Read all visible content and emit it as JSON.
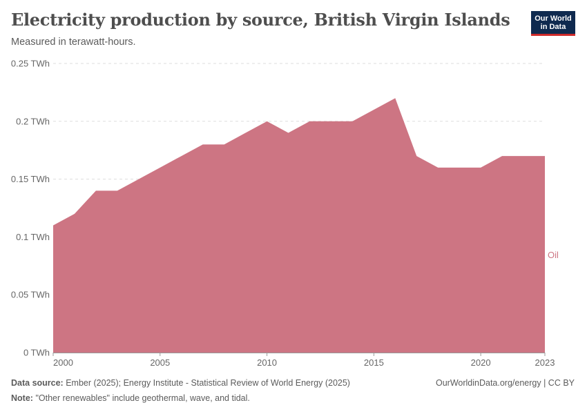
{
  "header": {
    "title": "Electricity production by source, British Virgin Islands",
    "subtitle": "Measured in terawatt-hours.",
    "logo_line1": "Our World",
    "logo_line2": "in Data"
  },
  "footer": {
    "source_label": "Data source:",
    "source_text": "Ember (2025); Energy Institute - Statistical Review of World Energy (2025)",
    "url_text": "OurWorldinData.org/energy | CC BY",
    "note_label": "Note:",
    "note_text": "\"Other renewables\" include geothermal, wave, and tidal."
  },
  "colors": {
    "oil": "#cd7583",
    "grid": "#dddddd",
    "axis": "#666666"
  },
  "chart_data": {
    "type": "area",
    "title": "Electricity production by source, British Virgin Islands",
    "ylabel": "TWh",
    "x": [
      2000,
      2001,
      2002,
      2003,
      2004,
      2005,
      2006,
      2007,
      2008,
      2009,
      2010,
      2011,
      2012,
      2013,
      2014,
      2015,
      2016,
      2017,
      2018,
      2019,
      2020,
      2021,
      2022,
      2023
    ],
    "series": [
      {
        "name": "Oil",
        "values": [
          0.11,
          0.12,
          0.14,
          0.14,
          0.15,
          0.16,
          0.17,
          0.18,
          0.18,
          0.19,
          0.2,
          0.19,
          0.2,
          0.2,
          0.2,
          0.21,
          0.22,
          0.17,
          0.16,
          0.16,
          0.16,
          0.17,
          0.17,
          0.17
        ]
      }
    ],
    "xlim": [
      2000,
      2023
    ],
    "ylim": [
      0,
      0.25
    ],
    "x_ticks": [
      "2000",
      "2005",
      "2010",
      "2015",
      "2020",
      "2023"
    ],
    "y_ticks": [
      "0 TWh",
      "0.05 TWh",
      "0.1 TWh",
      "0.15 TWh",
      "0.2 TWh",
      "0.25 TWh"
    ],
    "y_tick_values": [
      0,
      0.05,
      0.1,
      0.15,
      0.2,
      0.25
    ],
    "x_tick_values": [
      2000,
      2005,
      2010,
      2015,
      2020,
      2023
    ],
    "legend": "right, inline label"
  }
}
